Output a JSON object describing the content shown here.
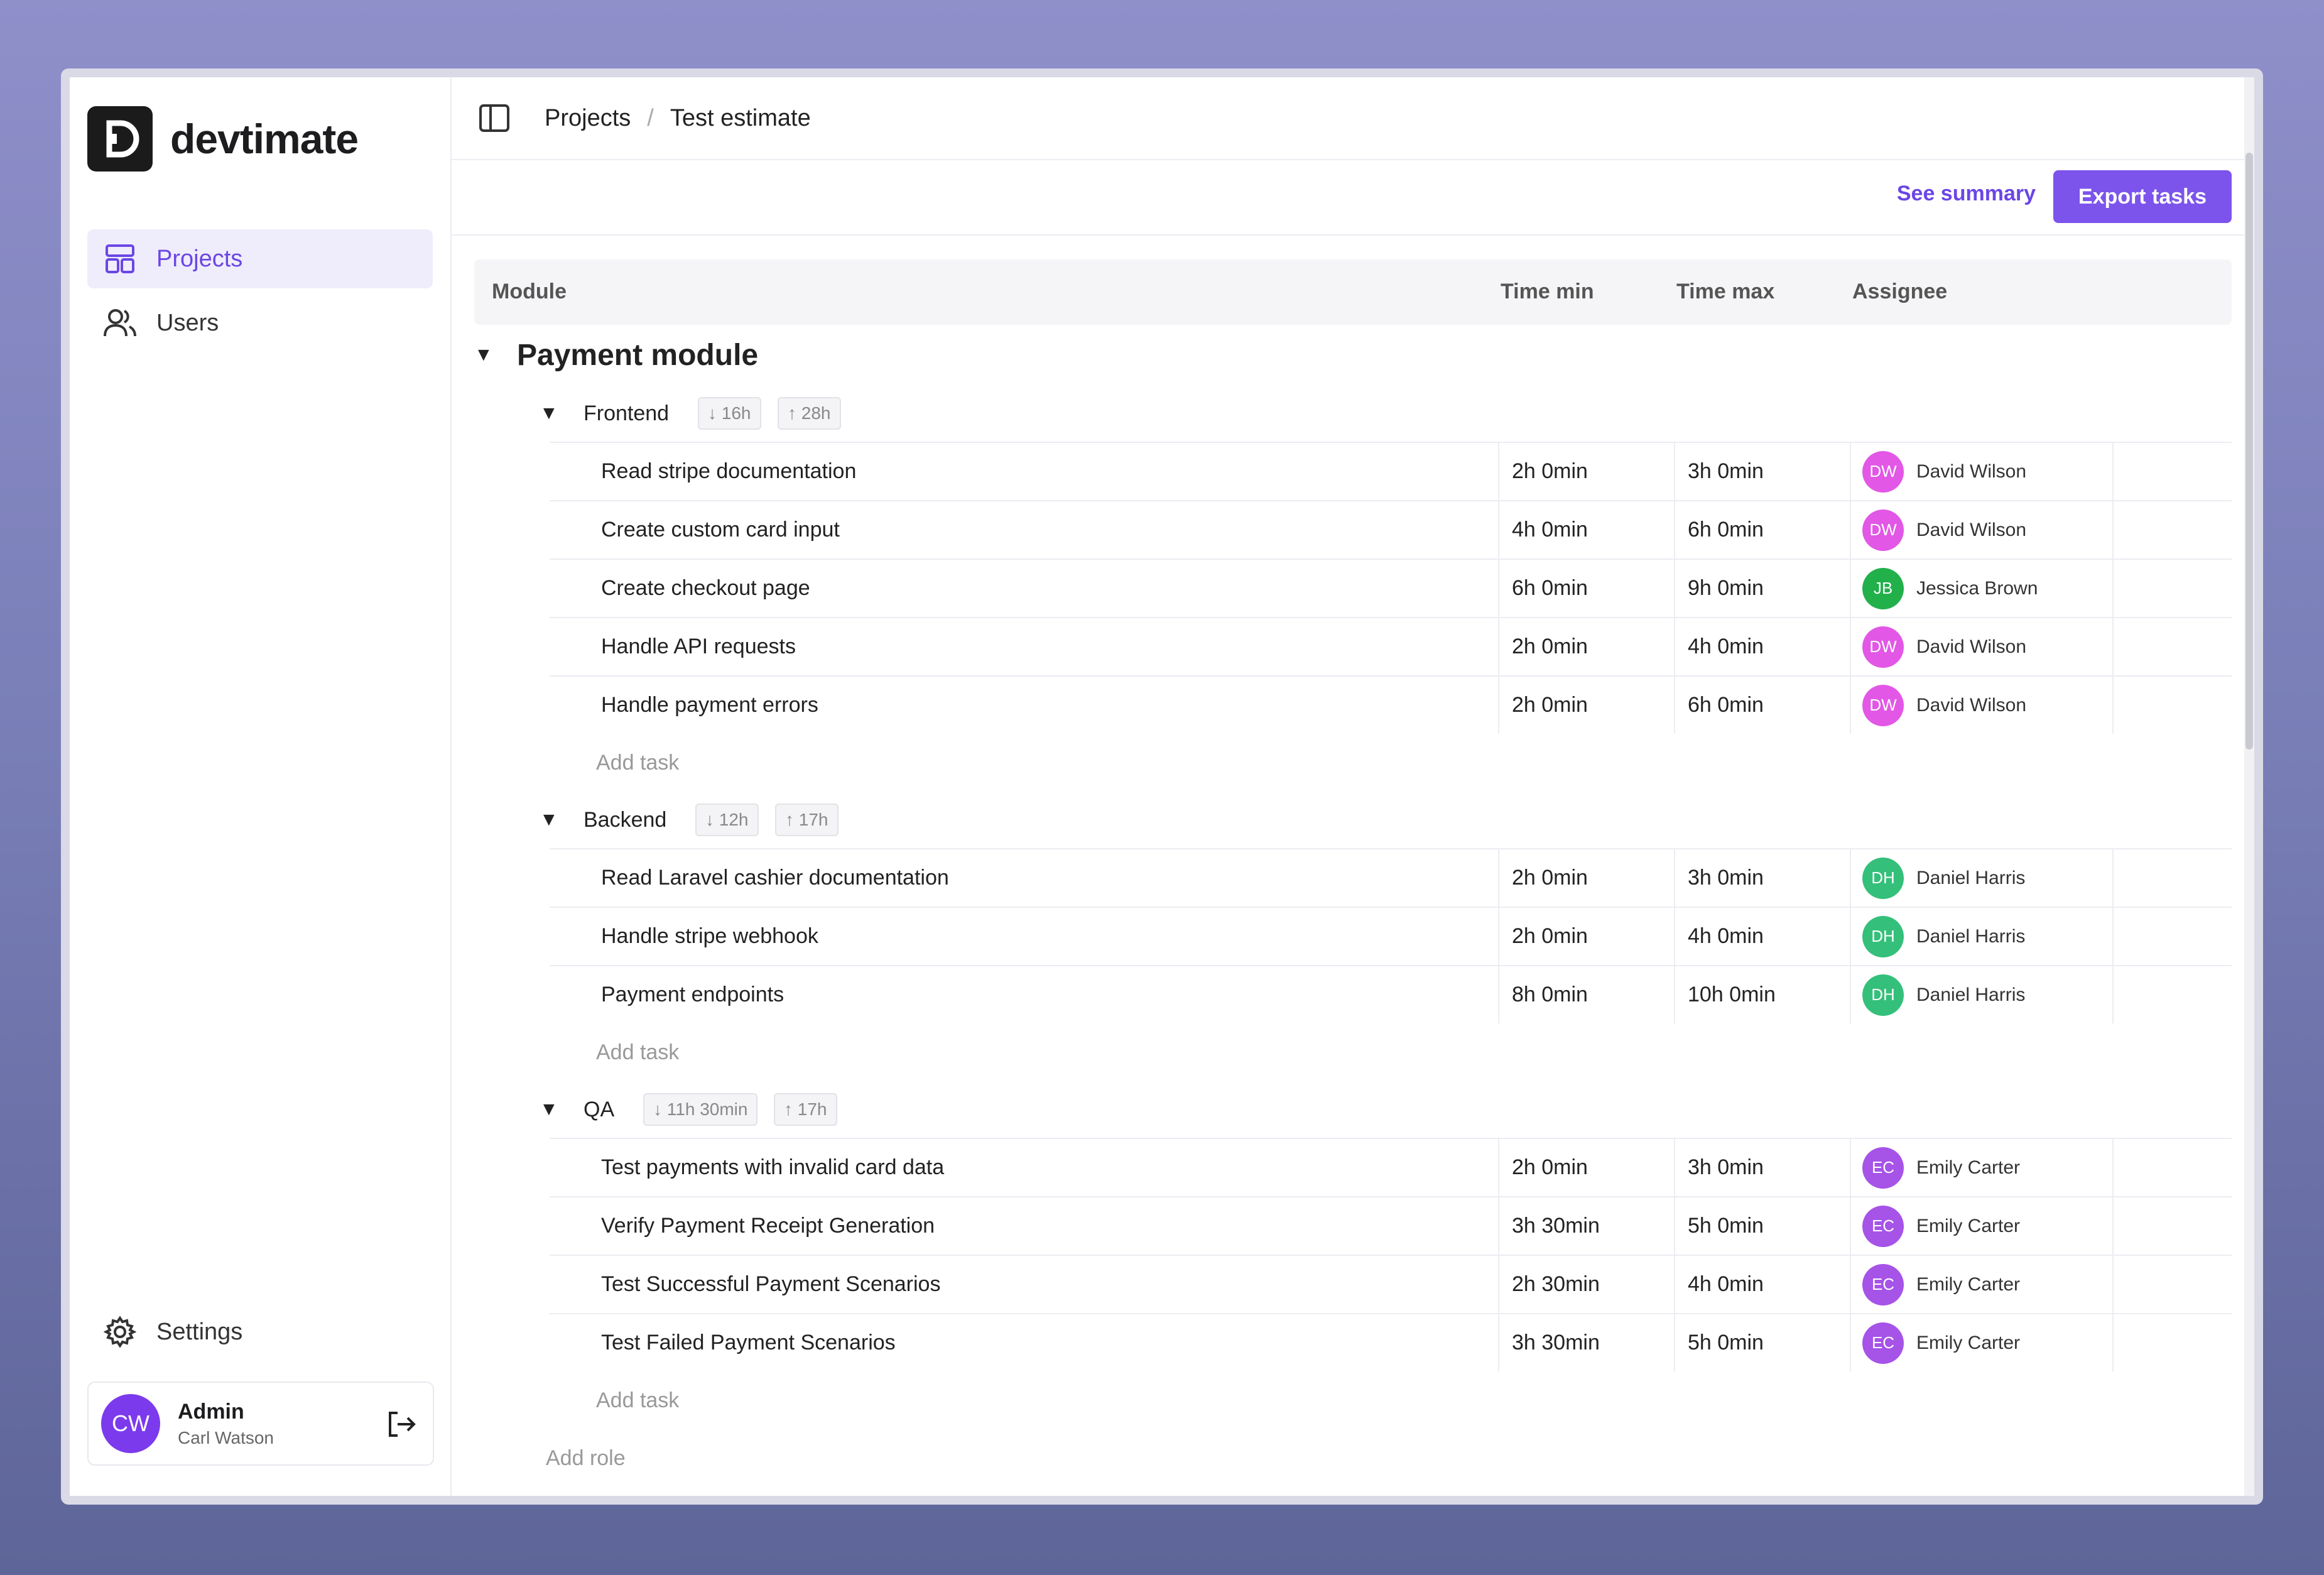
{
  "app": {
    "name": "devtimate"
  },
  "sidebar": {
    "items": [
      {
        "label": "Projects",
        "icon": "layout-icon",
        "active": true
      },
      {
        "label": "Users",
        "icon": "users-icon",
        "active": false
      }
    ],
    "settings_label": "Settings",
    "user": {
      "initials": "CW",
      "role": "Admin",
      "name": "Carl Watson"
    }
  },
  "breadcrumb": {
    "project": "Projects",
    "current": "Test estimate"
  },
  "actions": {
    "summary_label": "See summary",
    "export_label": "Export tasks"
  },
  "table": {
    "headers": {
      "module": "Module",
      "time_min": "Time min",
      "time_max": "Time max",
      "assignee": "Assignee"
    },
    "module": {
      "title": "Payment module",
      "roles": [
        {
          "name": "Frontend",
          "min": "↓ 16h",
          "max": "↑ 28h",
          "tasks": [
            {
              "name": "Read stripe documentation",
              "min": "2h 0min",
              "max": "3h 0min",
              "initials": "DW",
              "assignee": "David Wilson",
              "color": "#e257e6"
            },
            {
              "name": "Create custom card input",
              "min": "4h 0min",
              "max": "6h 0min",
              "initials": "DW",
              "assignee": "David Wilson",
              "color": "#e257e6"
            },
            {
              "name": "Create checkout page",
              "min": "6h 0min",
              "max": "9h 0min",
              "initials": "JB",
              "assignee": "Jessica Brown",
              "color": "#22b04b"
            },
            {
              "name": "Handle API requests",
              "min": "2h 0min",
              "max": "4h 0min",
              "initials": "DW",
              "assignee": "David Wilson",
              "color": "#e257e6"
            },
            {
              "name": "Handle payment errors",
              "min": "2h 0min",
              "max": "6h 0min",
              "initials": "DW",
              "assignee": "David Wilson",
              "color": "#e257e6"
            }
          ]
        },
        {
          "name": "Backend",
          "min": "↓ 12h",
          "max": "↑ 17h",
          "tasks": [
            {
              "name": "Read Laravel cashier documentation",
              "min": "2h 0min",
              "max": "3h 0min",
              "initials": "DH",
              "assignee": "Daniel Harris",
              "color": "#34c07a"
            },
            {
              "name": "Handle stripe webhook",
              "min": "2h 0min",
              "max": "4h 0min",
              "initials": "DH",
              "assignee": "Daniel Harris",
              "color": "#34c07a"
            },
            {
              "name": "Payment endpoints",
              "min": "8h 0min",
              "max": "10h 0min",
              "initials": "DH",
              "assignee": "Daniel Harris",
              "color": "#34c07a"
            }
          ]
        },
        {
          "name": "QA",
          "min": "↓ 11h 30min",
          "max": "↑ 17h",
          "tasks": [
            {
              "name": "Test payments with invalid card data",
              "min": "2h 0min",
              "max": "3h 0min",
              "initials": "EC",
              "assignee": "Emily Carter",
              "color": "#a653e8"
            },
            {
              "name": "Verify Payment Receipt Generation",
              "min": "3h 30min",
              "max": "5h 0min",
              "initials": "EC",
              "assignee": "Emily Carter",
              "color": "#a653e8"
            },
            {
              "name": "Test Successful Payment Scenarios",
              "min": "2h 30min",
              "max": "4h 0min",
              "initials": "EC",
              "assignee": "Emily Carter",
              "color": "#a653e8"
            },
            {
              "name": "Test Failed Payment Scenarios",
              "min": "3h 30min",
              "max": "5h 0min",
              "initials": "EC",
              "assignee": "Emily Carter",
              "color": "#a653e8"
            }
          ]
        }
      ]
    },
    "add_task_label": "Add task",
    "add_role_label": "Add role"
  }
}
